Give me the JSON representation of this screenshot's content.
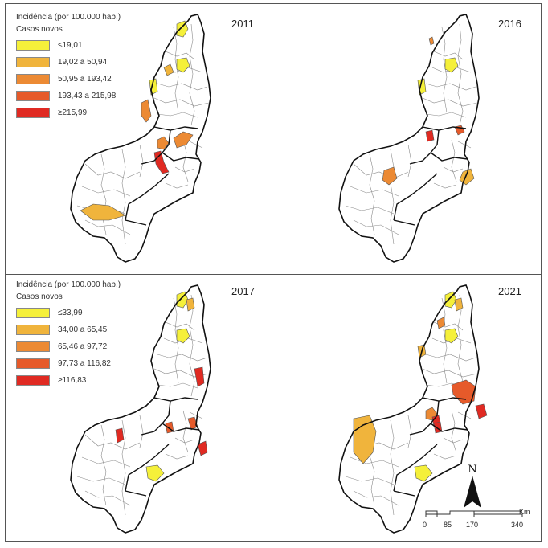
{
  "panels": [
    {
      "year": "2011",
      "legend": {
        "title": "Incidência (por 100.000 hab.)",
        "subtitle": "Casos novos",
        "classes": [
          {
            "label": "≤19,01",
            "color": "#f5f03a"
          },
          {
            "label": "19,02 a 50,94",
            "color": "#f0b43c"
          },
          {
            "label": "50,95 a 193,42",
            "color": "#ec8a34"
          },
          {
            "label": "193,43 a 215,98",
            "color": "#e65a2a"
          },
          {
            "label": "≥215,99",
            "color": "#e02a22"
          }
        ]
      },
      "regions": [
        {
          "cls": 0,
          "shape": "a"
        },
        {
          "cls": 0,
          "shape": "b"
        },
        {
          "cls": 1,
          "shape": "c"
        },
        {
          "cls": 2,
          "shape": "d"
        },
        {
          "cls": 2,
          "shape": "e"
        },
        {
          "cls": 2,
          "shape": "f"
        },
        {
          "cls": 4,
          "shape": "g"
        },
        {
          "cls": 1,
          "shape": "h"
        },
        {
          "cls": 0,
          "shape": "i"
        }
      ]
    },
    {
      "year": "2016",
      "legend": null,
      "regions": [
        {
          "cls": 0,
          "shape": "b"
        },
        {
          "cls": 0,
          "shape": "i"
        },
        {
          "cls": 2,
          "shape": "j"
        },
        {
          "cls": 4,
          "shape": "k"
        },
        {
          "cls": 3,
          "shape": "l"
        },
        {
          "cls": 1,
          "shape": "m"
        },
        {
          "cls": 2,
          "shape": "n"
        }
      ]
    },
    {
      "year": "2017",
      "legend": {
        "title": "Incidência (por 100.000 hab.)",
        "subtitle": "Casos novos",
        "classes": [
          {
            "label": "≤33,99",
            "color": "#f5f03a"
          },
          {
            "label": "34,00 a 65,45",
            "color": "#f0b43c"
          },
          {
            "label": "65,46 a 97,72",
            "color": "#ec8a34"
          },
          {
            "label": "97,73 a 116,82",
            "color": "#e65a2a"
          },
          {
            "label": "≥116,83",
            "color": "#e02a22"
          }
        ]
      },
      "regions": [
        {
          "cls": 0,
          "shape": "a"
        },
        {
          "cls": 1,
          "shape": "o"
        },
        {
          "cls": 0,
          "shape": "i"
        },
        {
          "cls": 4,
          "shape": "p"
        },
        {
          "cls": 3,
          "shape": "q"
        },
        {
          "cls": 3,
          "shape": "r"
        },
        {
          "cls": 4,
          "shape": "s"
        },
        {
          "cls": 4,
          "shape": "t"
        },
        {
          "cls": 0,
          "shape": "u"
        }
      ]
    },
    {
      "year": "2021",
      "legend": null,
      "regions": [
        {
          "cls": 0,
          "shape": "a"
        },
        {
          "cls": 1,
          "shape": "o"
        },
        {
          "cls": 2,
          "shape": "v"
        },
        {
          "cls": 1,
          "shape": "w"
        },
        {
          "cls": 0,
          "shape": "i"
        },
        {
          "cls": 2,
          "shape": "e"
        },
        {
          "cls": 3,
          "shape": "x"
        },
        {
          "cls": 4,
          "shape": "y"
        },
        {
          "cls": 1,
          "shape": "z"
        },
        {
          "cls": 4,
          "shape": "q"
        },
        {
          "cls": 4,
          "shape": "aa"
        },
        {
          "cls": 0,
          "shape": "u"
        }
      ]
    }
  ],
  "north_label": "N",
  "scale": {
    "ticks": [
      "0",
      "85",
      "170",
      "340"
    ],
    "unit": "Km"
  },
  "colors": {
    "outline": "#111111",
    "inner": "#8a8a8a",
    "frame": "#555555"
  }
}
